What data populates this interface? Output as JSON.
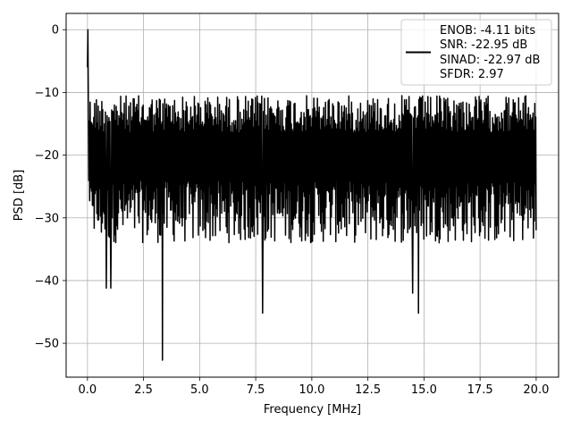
{
  "chart_data": {
    "type": "line",
    "title": "",
    "xlabel": "Frequency [MHz]",
    "ylabel": "PSD [dB]",
    "xlim": [
      -0.95,
      21.0
    ],
    "ylim": [
      -55.4,
      2.6
    ],
    "xticks": [
      0.0,
      2.5,
      5.0,
      7.5,
      10.0,
      12.5,
      15.0,
      17.5,
      20.0
    ],
    "xtick_labels": [
      "0.0",
      "2.5",
      "5.0",
      "7.5",
      "10.0",
      "12.5",
      "15.0",
      "17.5",
      "20.0"
    ],
    "yticks": [
      0,
      -10,
      -20,
      -30,
      -40,
      -50
    ],
    "ytick_labels": [
      "0",
      "−10",
      "−20",
      "−30",
      "−40",
      "−50"
    ],
    "grid": true,
    "legend": {
      "placement": "top-right",
      "lines": [
        "ENOB: -4.11 bits",
        "SNR: -22.95 dB",
        "SINAD: -22.97 dB",
        "SFDR: 2.97"
      ]
    },
    "series": [
      {
        "color": "#000000",
        "x_range": [
          0.0,
          20.0
        ],
        "points": 1000,
        "typical_band": [
          -30,
          -12
        ],
        "peak": {
          "x": 0.02,
          "y": 0.0
        },
        "minimum": {
          "x": 3.35,
          "y": -52.7
        },
        "notable_dips": [
          {
            "x": 0.85,
            "y": -41.2
          },
          {
            "x": 1.05,
            "y": -41.2
          },
          {
            "x": 7.8,
            "y": -45.2
          },
          {
            "x": 14.5,
            "y": -42.0
          },
          {
            "x": 14.75,
            "y": -45.2
          }
        ]
      }
    ]
  }
}
